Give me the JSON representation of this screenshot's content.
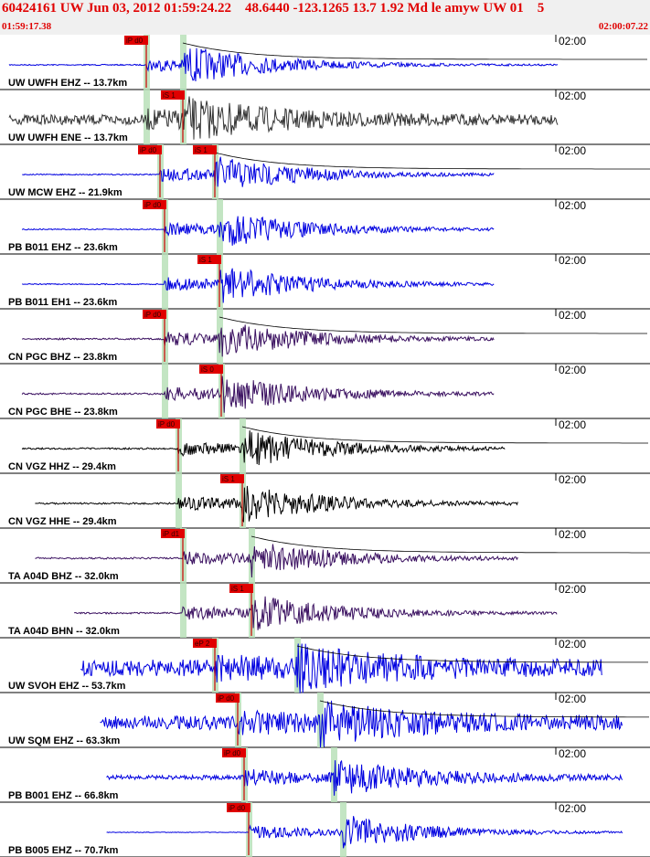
{
  "header": {
    "title": "60424161 UW Jun 03, 2012 01:59:24.22    48.6440 -123.1265 13.7 1.92 Md le amyw UW 01    5",
    "start_time": "01:59:17.38",
    "end_time": "02:00:07.22"
  },
  "colors": {
    "title": "#e00000",
    "pick_box": "#e00000",
    "pick_line": "#cc0000",
    "highlight": "#b8e0b8",
    "coda": "#000000",
    "blue": "#0000e0",
    "dark": "#333333",
    "purple": "#3a1060",
    "black": "#000000"
  },
  "chart_data": {
    "type": "seismogram",
    "time_range": [
      "01:59:17.38",
      "02:00:07.22"
    ],
    "minute_label": "02:00",
    "traces": [
      {
        "label": "UW UWFH EHZ -- 13.7km",
        "color": "blue",
        "pick": "iP d0",
        "pick_t": 0.2,
        "s": 0.6,
        "p": 0.2,
        "coda": true,
        "len": 1.0,
        "start": 0.0,
        "noise": 0.02
      },
      {
        "label": "UW UWFH ENE -- 13.7km",
        "color": "dark",
        "pick": "iS 1",
        "pick_t": 0.6,
        "s": 0.6,
        "p": 0.2,
        "coda": false,
        "len": 1.0,
        "start": 0.0,
        "noise": 0.18
      },
      {
        "label": "UW MCW EHZ -- 21.9km",
        "color": "blue",
        "pick": "iP d0",
        "pick_t": 0.35,
        "s": 0.95,
        "p": 0.35,
        "coda": true,
        "len": 0.86,
        "start": 0.02,
        "noise": 0.02,
        "pick2": "iS 1",
        "pick2_t": 0.95
      },
      {
        "label": "PB B011 EHZ -- 23.6km",
        "color": "blue",
        "pick": "iP d0",
        "pick_t": 0.4,
        "s": 1.0,
        "p": 0.4,
        "coda": false,
        "len": 0.86,
        "start": 0.02,
        "noise": 0.02
      },
      {
        "label": "PB B011 EH1 -- 23.6km",
        "color": "blue",
        "pick": "iS 1",
        "pick_t": 1.0,
        "s": 1.0,
        "p": 0.4,
        "coda": false,
        "len": 0.86,
        "start": 0.02,
        "noise": 0.02
      },
      {
        "label": "CN PGC BHZ -- 23.8km",
        "color": "purple",
        "pick": "iP d0",
        "pick_t": 0.4,
        "s": 1.0,
        "p": 0.4,
        "coda": true,
        "len": 0.86,
        "start": 0.02,
        "noise": 0.03
      },
      {
        "label": "CN PGC BHE -- 23.8km",
        "color": "purple",
        "pick": "iS 0",
        "pick_t": 1.02,
        "s": 1.02,
        "p": 0.4,
        "coda": false,
        "len": 0.86,
        "start": 0.02,
        "noise": 0.03
      },
      {
        "label": "CN VGZ HHZ -- 29.4km",
        "color": "black",
        "pick": "iP d0",
        "pick_t": 0.55,
        "s": 1.25,
        "p": 0.55,
        "coda": true,
        "len": 0.88,
        "start": 0.02,
        "noise": 0.03
      },
      {
        "label": "CN VGZ HHE -- 29.4km",
        "color": "black",
        "pick": "iS 1",
        "pick_t": 1.25,
        "s": 1.25,
        "p": 0.55,
        "coda": false,
        "len": 0.88,
        "start": 0.04,
        "noise": 0.03
      },
      {
        "label": "TA A04D BHZ -- 32.0km",
        "color": "purple",
        "pick": "iP d1",
        "pick_t": 0.6,
        "s": 1.35,
        "p": 0.6,
        "coda": true,
        "len": 0.88,
        "start": 0.04,
        "noise": 0.03
      },
      {
        "label": "TA A04D BHN -- 32.0km",
        "color": "purple",
        "pick": "iS 1",
        "pick_t": 1.35,
        "s": 1.35,
        "p": 0.6,
        "coda": false,
        "len": 0.88,
        "start": 0.1,
        "noise": 0.03
      },
      {
        "label": "UW SVOH EHZ -- 53.7km",
        "color": "blue",
        "pick": "eP 2",
        "pick_t": 0.95,
        "s": 1.85,
        "p": 0.95,
        "coda": true,
        "len": 0.95,
        "start": 0.11,
        "noise": 0.3
      },
      {
        "label": "UW SQM EHZ -- 63.3km",
        "color": "blue",
        "pick": "iP d0",
        "pick_t": 1.2,
        "s": 2.1,
        "p": 1.2,
        "coda": true,
        "len": 0.98,
        "start": 0.14,
        "noise": 0.25
      },
      {
        "label": "PB B001 EHZ -- 66.8km",
        "color": "blue",
        "pick": "iP d0",
        "pick_t": 1.27,
        "s": 2.25,
        "p": 1.27,
        "coda": false,
        "len": 0.99,
        "start": 0.15,
        "noise": 0.08
      },
      {
        "label": "PB B005 EHZ -- 70.7km",
        "color": "blue",
        "pick": "iP d0",
        "pick_t": 1.32,
        "s": 2.35,
        "p": 1.32,
        "coda": false,
        "len": 1.0,
        "start": 0.15,
        "noise": 0.01
      }
    ]
  }
}
